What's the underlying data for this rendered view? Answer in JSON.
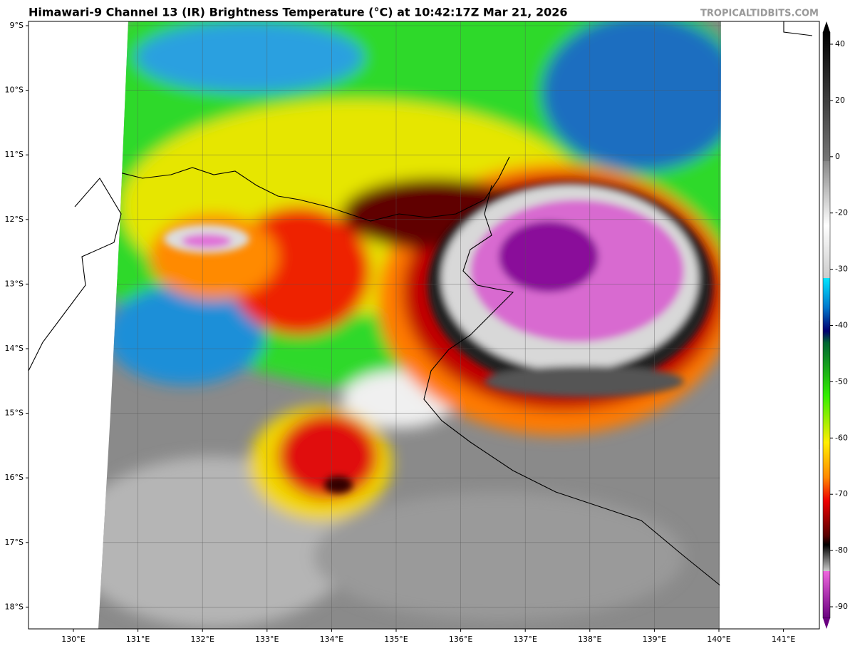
{
  "header": {
    "title": "Himawari-9 Channel 13 (IR) Brightness Temperature (°C) at 10:42:17Z Mar 21, 2026",
    "source": "TROPICALTIDBITS.COM"
  },
  "map": {
    "lat_labels": [
      "9°S",
      "10°S",
      "11°S",
      "12°S",
      "13°S",
      "14°S",
      "15°S",
      "16°S",
      "17°S",
      "18°S"
    ],
    "lon_labels": [
      "130°E",
      "131°E",
      "132°E",
      "133°E",
      "134°E",
      "135°E",
      "136°E",
      "137°E",
      "138°E",
      "139°E",
      "140°E",
      "141°E"
    ]
  },
  "colorbar": {
    "ticks": [
      40,
      20,
      0,
      -20,
      -30,
      -40,
      -50,
      -60,
      -70,
      -80,
      -90
    ]
  }
}
